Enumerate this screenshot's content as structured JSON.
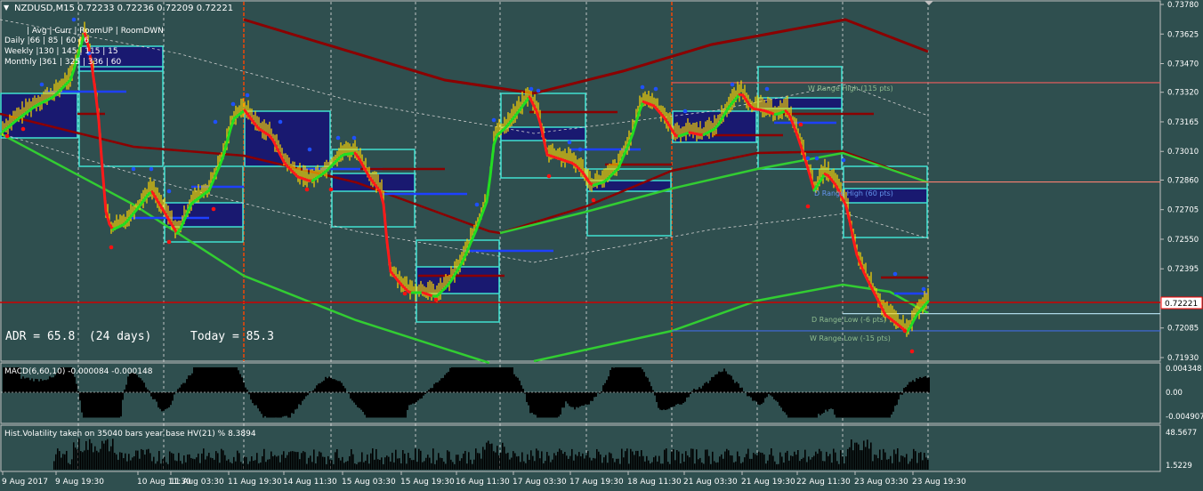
{
  "header": {
    "symbol_line": "NZDUSD,M15  0.72233 0.72236 0.72209 0.72221",
    "adr_text": "ADR = 65.8  (24 days)",
    "today_text": "Today = 85.3"
  },
  "range_table": {
    "header": "| Avg | Curr | RoomUP | RoomDWN",
    "rows": [
      {
        "label": "Daily   |66 | 85 | 60 | 6"
      },
      {
        "label": "Weekly  |130 | 145 | 115 | 15"
      },
      {
        "label": "Monthly |361 | 325 | 336 | 60"
      }
    ]
  },
  "level_labels": {
    "w_range_high": "W Range High (115 pts)",
    "d_range_high": "D Range High (60 pts)",
    "d_range_low": "D Range Low (-6 pts)",
    "w_range_low": "W Range Low (-15 pts)"
  },
  "current_price_label": "0.72221",
  "price_axis": {
    "ticks": [
      "0.73780",
      "0.73625",
      "0.73470",
      "0.73320",
      "0.73165",
      "0.73010",
      "0.72860",
      "0.72705",
      "0.72550",
      "0.72395",
      "0.72085",
      "0.71930"
    ]
  },
  "macd": {
    "title": "MACD(6,60,10) -0.000084 -0.000148",
    "ticks": [
      "0.004348",
      "0.00",
      "-0.004907"
    ]
  },
  "volatility": {
    "title": "Hist.Volatility  taken on 35040 bars year base  HV(21) %  8.3894",
    "ticks": [
      "48.5677",
      "1.5229"
    ],
    "axis_max_tick": "48.5677"
  },
  "time_axis": {
    "labels": [
      "9 Aug 2017",
      "9 Aug 19:30",
      "10 Aug 11:30",
      "11 Aug 03:30",
      "11 Aug 19:30",
      "14 Aug 11:30",
      "15 Aug 03:30",
      "15 Aug 19:30",
      "16 Aug 11:30",
      "17 Aug 03:30",
      "17 Aug 19:30",
      "18 Aug 11:30",
      "21 Aug 03:30",
      "21 Aug 19:30",
      "22 Aug 11:30",
      "23 Aug 03:30",
      "23 Aug 19:30"
    ]
  },
  "colors": {
    "background": "#2f4f4f",
    "price_bars": "#ffd700",
    "macd_fill": "#000000",
    "vol_fill": "#000000",
    "ma_green": "#32cd32",
    "ma_darkred": "#8b0000",
    "boxes": "#40e0d0",
    "box_fill": "#191970",
    "day_separator": "#ff4500",
    "signal_line_blue": "#0000ff"
  },
  "chart_data": {
    "type": "line",
    "title": "NZDUSD,M15",
    "xlabel": "",
    "ylabel": "",
    "ylim": [
      0.7193,
      0.7378
    ],
    "series": [
      {
        "name": "NZDUSD",
        "x": [
          "9 Aug 2017",
          "9 Aug 19:30",
          "10 Aug 11:30",
          "11 Aug 03:30",
          "11 Aug 19:30",
          "14 Aug 11:30",
          "15 Aug 03:30",
          "15 Aug 19:30",
          "16 Aug 11:30",
          "17 Aug 03:30",
          "17 Aug 19:30",
          "18 Aug 11:30",
          "21 Aug 03:30",
          "21 Aug 19:30",
          "22 Aug 11:30",
          "23 Aug 03:30",
          "23 Aug 19:30"
        ],
        "values": [
          0.731,
          0.7333,
          0.7265,
          0.7284,
          0.7316,
          0.7288,
          0.729,
          0.723,
          0.7265,
          0.7315,
          0.7288,
          0.732,
          0.7313,
          0.7325,
          0.7295,
          0.7222,
          0.7222
        ]
      }
    ],
    "levels": {
      "w_range_high": 0.7337,
      "d_range_high": 0.7285,
      "d_range_low": 0.7216,
      "w_range_low": 0.7207,
      "current_price": 0.72221
    },
    "macd": {
      "ylim": [
        -0.004907,
        0.004348
      ],
      "last": -8.4e-05,
      "signal": -0.000148
    },
    "hist_volatility": {
      "ylim": [
        1.5229,
        48.5677
      ],
      "last": 8.3894
    }
  }
}
